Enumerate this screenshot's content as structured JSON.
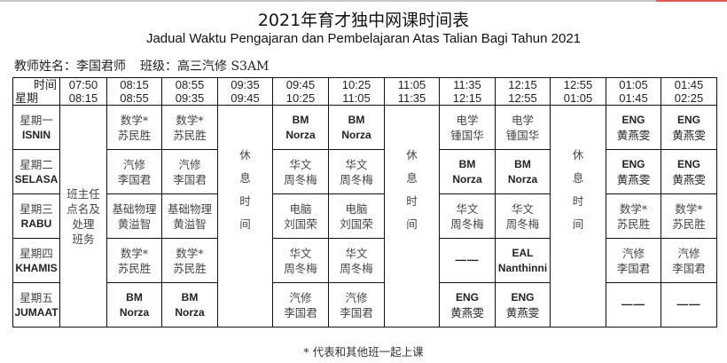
{
  "title": "2021年育才独中网课时间表",
  "subtitle": "Jadual Waktu Pengajaran dan Pembelajaran Atas Talian Bagi Tahun 2021",
  "teacher": {
    "label": "教师姓名：李国君师",
    "class_label": "班级：高三汽修 S3AM"
  },
  "header": {
    "time_label": "时间",
    "day_label": "星期",
    "slots": [
      [
        "07:50",
        "08:15"
      ],
      [
        "08:15",
        "08:55"
      ],
      [
        "08:55",
        "09:35"
      ],
      [
        "09:35",
        "09:45"
      ],
      [
        "09:45",
        "10:25"
      ],
      [
        "10:25",
        "11:05"
      ],
      [
        "11:05",
        "11:35"
      ],
      [
        "11:35",
        "12:15"
      ],
      [
        "12:15",
        "12:55"
      ],
      [
        "12:55",
        "01:05"
      ],
      [
        "01:05",
        "01:45"
      ],
      [
        "01:45",
        "02:25"
      ]
    ]
  },
  "homeroom": [
    "班主任",
    "点名及",
    "处理",
    "班务"
  ],
  "break": [
    "休",
    "息",
    "时",
    "间"
  ],
  "days": [
    {
      "cn": "星期一",
      "ms": "ISNIN",
      "lessons": [
        [
          "数学*",
          "苏民胜"
        ],
        [
          "数学*",
          "苏民胜"
        ],
        [
          "BM",
          "Norza"
        ],
        [
          "BM",
          "Norza"
        ],
        [
          "电学",
          "锺国华"
        ],
        [
          "电学",
          "锺国华"
        ],
        [
          "ENG",
          "黄燕雯"
        ],
        [
          "ENG",
          "黄燕雯"
        ]
      ]
    },
    {
      "cn": "星期二",
      "ms": "SELASA",
      "lessons": [
        [
          "汽修",
          "李国君"
        ],
        [
          "汽修",
          "李国君"
        ],
        [
          "华文",
          "周冬梅"
        ],
        [
          "华文",
          "周冬梅"
        ],
        [
          "BM",
          "Norza"
        ],
        [
          "BM",
          "Norza"
        ],
        [
          "ENG",
          "黄燕雯"
        ],
        [
          "ENG",
          "黄燕雯"
        ]
      ]
    },
    {
      "cn": "星期三",
      "ms": "RABU",
      "lessons": [
        [
          "基础物理",
          "黄溢智"
        ],
        [
          "基础物理",
          "黄溢智"
        ],
        [
          "电脑",
          "刘国荣"
        ],
        [
          "电脑",
          "刘国荣"
        ],
        [
          "华文",
          "周冬梅"
        ],
        [
          "华文",
          "周冬梅"
        ],
        [
          "数学*",
          "苏民胜"
        ],
        [
          "数学*",
          "苏民胜"
        ]
      ]
    },
    {
      "cn": "星期四",
      "ms": "KHAMIS",
      "lessons": [
        [
          "数学*",
          "苏民胜"
        ],
        [
          "数学*",
          "苏民胜"
        ],
        [
          "华文",
          "周冬梅"
        ],
        [
          "华文",
          "周冬梅"
        ],
        [
          "——"
        ],
        [
          "EAL",
          "Nanthinni"
        ],
        [
          "汽修",
          "李国君"
        ],
        [
          "汽修",
          "李国君"
        ]
      ]
    },
    {
      "cn": "星期五",
      "ms": "JUMAAT",
      "lessons": [
        [
          "BM",
          "Norza"
        ],
        [
          "BM",
          "Norza"
        ],
        [
          "汽修",
          "李国君"
        ],
        [
          "汽修",
          "李国君"
        ],
        [
          "ENG",
          "黄燕雯"
        ],
        [
          "ENG",
          "黄燕雯"
        ],
        [
          "——"
        ],
        [
          "——"
        ]
      ]
    }
  ],
  "footnote": "* 代表和其他班一起上课"
}
